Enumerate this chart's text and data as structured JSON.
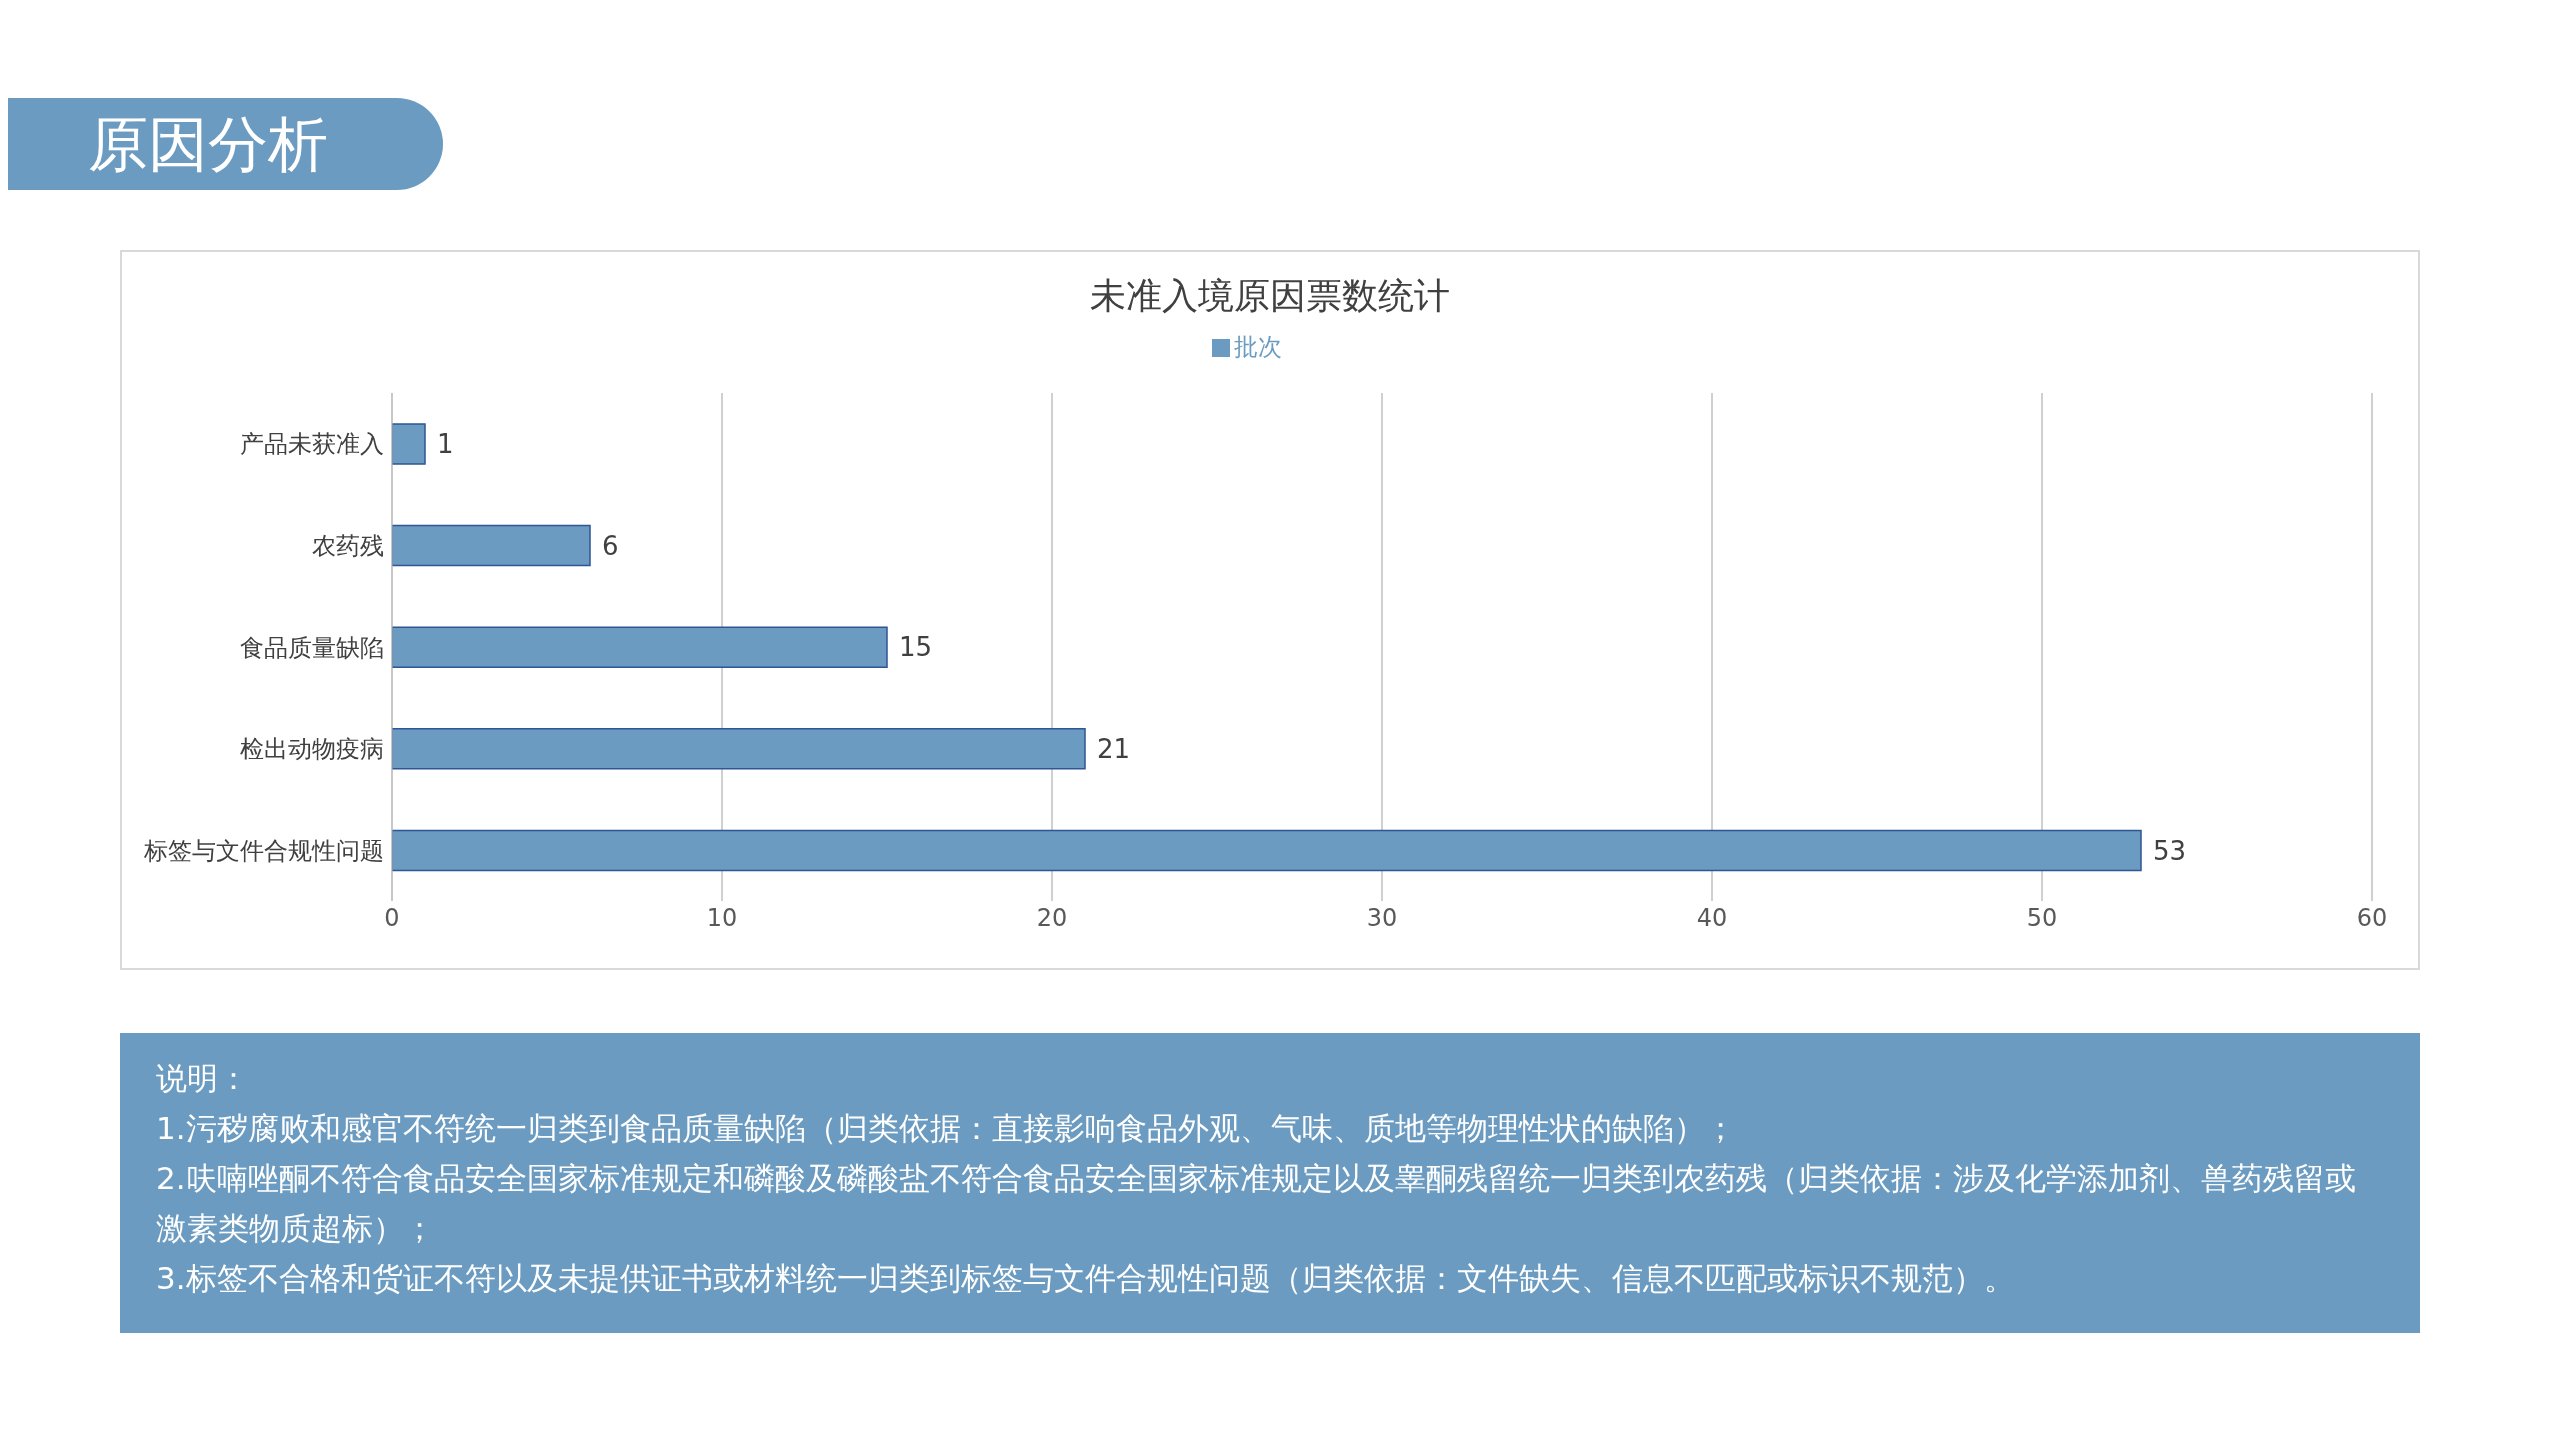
{
  "chart_data": {
    "type": "bar",
    "orientation": "horizontal",
    "title": "未准入境原因票数统计",
    "categories": [
      "产品未获准入",
      "农药残",
      "食品质量缺陷",
      "检出动物疫病",
      "标签与文件合规性问题"
    ],
    "series": [
      {
        "name": "批次",
        "color": "#6b9bc0",
        "values": [
          1,
          6,
          15,
          21,
          53
        ]
      }
    ],
    "xlim": [
      0,
      60
    ],
    "xticks": [
      0,
      10,
      20,
      30,
      40,
      50,
      60
    ],
    "grid": "x",
    "legend": "top",
    "data_labels": true,
    "annotations": [
      "原因分析",
      "说明：",
      "1.污秽腐败和感官不符统一归类到食品质量缺陷（归类依据：直接影响食品外观、气味、质地等物理性状的缺陷）；",
      "2.呋喃唑酮不符合食品安全国家标准规定和磷酸及磷酸盐不符合食品安全国家标准规定以及睾酮残留统一归类到农药残（归类依据：涉及化学添加剂、兽药残留或激素类物质超标）；",
      "3.标签不合格和货证不符以及未提供证书或材料统一归类到标签与文件合规性问题（归类依据：文件缺失、信息不匹配或标识不规范）。"
    ]
  }
}
